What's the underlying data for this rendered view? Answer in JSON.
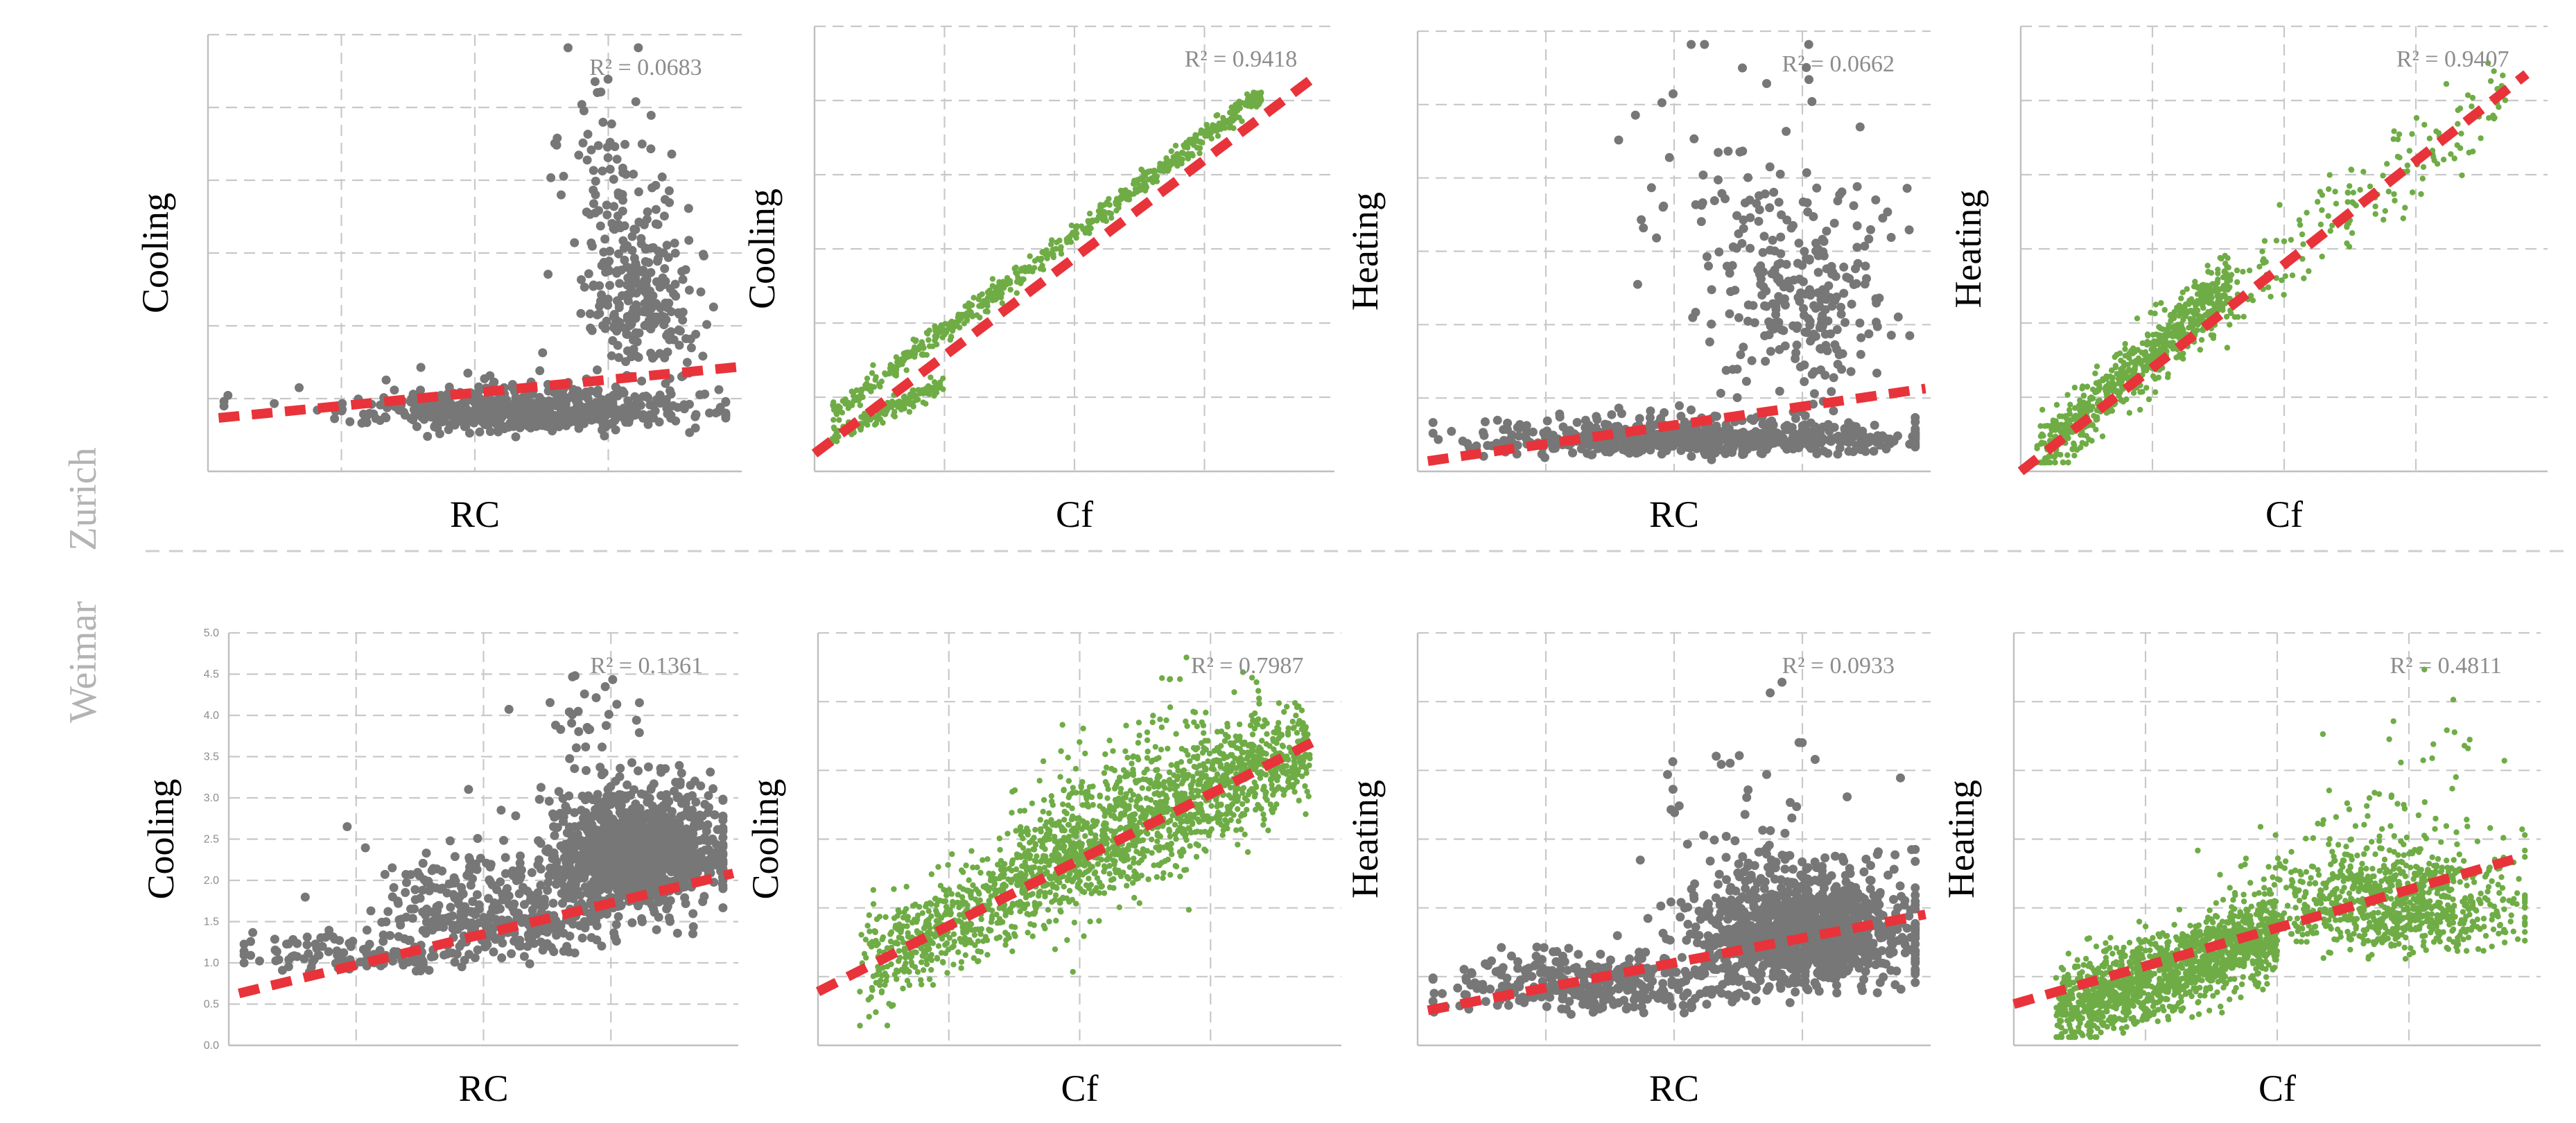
{
  "figure": {
    "row_labels": [
      "Zurich",
      "Weimar"
    ]
  },
  "chart_data": [
    {
      "type": "scatter",
      "city": "Zurich",
      "xlabel": "RC",
      "ylabel": "Cooling",
      "r2_label": "R² = 0.0683",
      "color": "#777777",
      "trend": {
        "intercept": 0.12,
        "slope": 0.12
      },
      "cloud": [
        {
          "n": 650,
          "cx": 0.58,
          "sx": 0.16,
          "cy": 0.12,
          "sy": 0.035
        },
        {
          "n": 280,
          "cx": 0.81,
          "sx": 0.055,
          "cy": 0.33,
          "sy": 0.16
        },
        {
          "n": 40,
          "cx": 0.74,
          "sx": 0.06,
          "cy": 0.62,
          "sy": 0.18
        }
      ]
    },
    {
      "type": "scatter",
      "city": "Zurich",
      "xlabel": "Cf",
      "ylabel": "Cooling",
      "r2_label": "R² = 0.9418",
      "color": "#6fac46",
      "trend": {
        "intercept": 0.04,
        "slope": 0.88
      },
      "cloud": [
        {
          "n": 600,
          "mode": "line",
          "x0": 0.03,
          "x1": 0.86,
          "slope": 0.87,
          "intercept": 0.1,
          "spread": 0.012
        },
        {
          "n": 140,
          "mode": "line",
          "x0": 0.03,
          "x1": 0.25,
          "slope": 0.55,
          "intercept": 0.06,
          "spread": 0.01
        }
      ]
    },
    {
      "type": "scatter",
      "city": "Zurich",
      "xlabel": "RC",
      "ylabel": "Heating",
      "r2_label": "R² = 0.0662",
      "color": "#777777",
      "trend": {
        "intercept": 0.02,
        "slope": 0.17
      },
      "cloud": [
        {
          "n": 700,
          "cx": 0.55,
          "sx": 0.2,
          "cy": 0.06,
          "sy": 0.03
        },
        {
          "n": 250,
          "cx": 0.75,
          "sx": 0.09,
          "cy": 0.3,
          "sy": 0.18
        },
        {
          "n": 40,
          "cx": 0.6,
          "sx": 0.12,
          "cy": 0.6,
          "sy": 0.18
        }
      ]
    },
    {
      "type": "scatter",
      "city": "Zurich",
      "xlabel": "Cf",
      "ylabel": "Heating",
      "r2_label": "R² = 0.9407",
      "color": "#6fac46",
      "trend": {
        "intercept": 0.0,
        "slope": 0.93
      },
      "cloud": [
        {
          "n": 700,
          "mode": "line",
          "x0": 0.03,
          "x1": 0.4,
          "slope": 1.05,
          "intercept": 0.0,
          "spread": 0.035
        },
        {
          "n": 160,
          "mode": "line",
          "x0": 0.35,
          "x1": 0.92,
          "slope": 0.85,
          "intercept": 0.06,
          "spread": 0.05
        }
      ]
    },
    {
      "type": "scatter",
      "city": "Weimar",
      "xlabel": "RC",
      "ylabel": "Cooling",
      "r2_label": "R² = 0.1361",
      "color": "#777777",
      "ylim": [
        0,
        5
      ],
      "yticks": [
        "0.0",
        "0.5",
        "1.0",
        "1.5",
        "2.0",
        "2.5",
        "3.0",
        "3.5",
        "4.0",
        "4.5",
        "5.0"
      ],
      "trend": {
        "intercept": 0.12,
        "slope": 0.3
      },
      "cloud": [
        {
          "n": 1100,
          "cx": 0.8,
          "sx": 0.08,
          "cy": 0.42,
          "sy": 0.1
        },
        {
          "n": 400,
          "cx": 0.55,
          "sx": 0.14,
          "cy": 0.28,
          "sy": 0.09
        },
        {
          "n": 120,
          "cx": 0.25,
          "sx": 0.12,
          "cy": 0.2,
          "sy": 0.04
        },
        {
          "n": 25,
          "cx": 0.68,
          "sx": 0.06,
          "cy": 0.75,
          "sy": 0.07
        }
      ]
    },
    {
      "type": "scatter",
      "city": "Weimar",
      "xlabel": "Cf",
      "ylabel": "Cooling",
      "r2_label": "R² = 0.7987",
      "color": "#6fac46",
      "trend": {
        "intercept": 0.13,
        "slope": 0.64
      },
      "cloud": [
        {
          "n": 1500,
          "mode": "line",
          "x0": 0.08,
          "x1": 0.94,
          "slope": 0.6,
          "intercept": 0.15,
          "spread": 0.06
        },
        {
          "n": 500,
          "mode": "line",
          "x0": 0.35,
          "x1": 0.85,
          "slope": 0.65,
          "intercept": 0.2,
          "spread": 0.1
        }
      ]
    },
    {
      "type": "scatter",
      "city": "Weimar",
      "xlabel": "RC",
      "ylabel": "Heating",
      "r2_label": "R² = 0.0933",
      "color": "#777777",
      "trend": {
        "intercept": 0.08,
        "slope": 0.24
      },
      "cloud": [
        {
          "n": 1200,
          "cx": 0.75,
          "sx": 0.1,
          "cy": 0.22,
          "sy": 0.1
        },
        {
          "n": 350,
          "cx": 0.35,
          "sx": 0.14,
          "cy": 0.12,
          "sy": 0.05
        },
        {
          "n": 30,
          "cx": 0.62,
          "sx": 0.08,
          "cy": 0.5,
          "sy": 0.15
        }
      ]
    },
    {
      "type": "scatter",
      "city": "Weimar",
      "xlabel": "Cf",
      "ylabel": "Heating",
      "r2_label": "R² = 0.4811",
      "color": "#6fac46",
      "trend": {
        "intercept": 0.1,
        "slope": 0.37
      },
      "cloud": [
        {
          "n": 1400,
          "mode": "line",
          "x0": 0.08,
          "x1": 0.5,
          "slope": 0.45,
          "intercept": 0.05,
          "spread": 0.05
        },
        {
          "n": 900,
          "cx": 0.72,
          "sx": 0.12,
          "cy": 0.3,
          "sy": 0.1
        },
        {
          "n": 25,
          "cx": 0.78,
          "sx": 0.08,
          "cy": 0.62,
          "sy": 0.12
        }
      ]
    }
  ]
}
